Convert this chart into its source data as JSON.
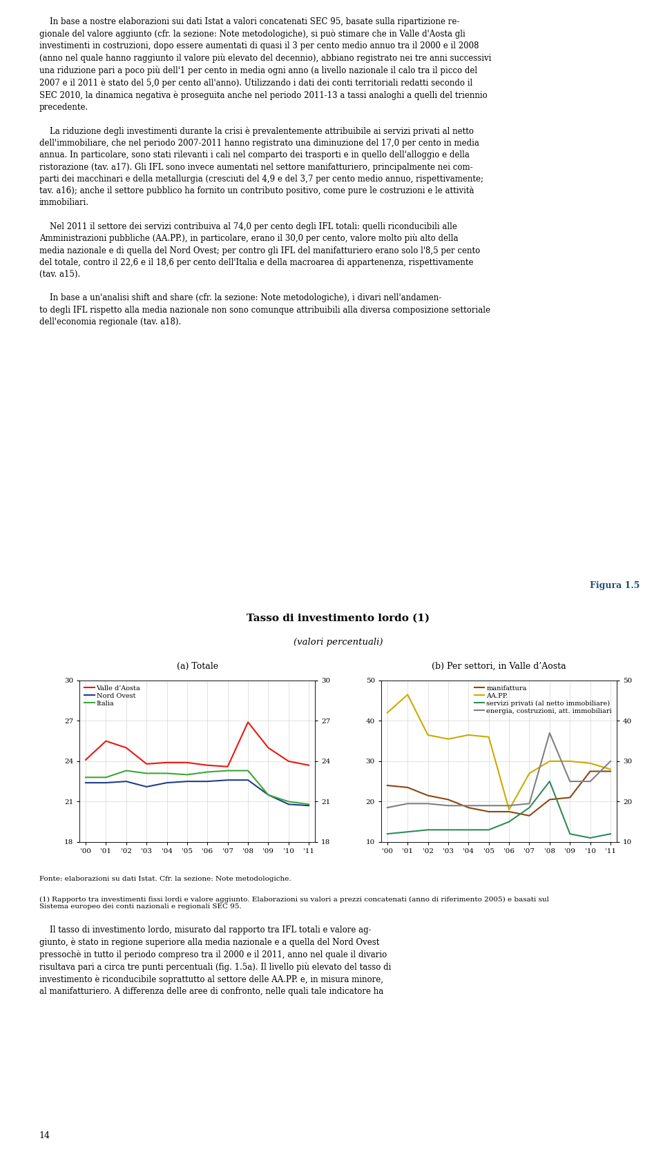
{
  "title_main": "Tasso di investimento lordo (1)",
  "title_sub": "(valori percentuali)",
  "figura_label": "Figura 1.5",
  "subtitle_a": "(a) Totale",
  "subtitle_b": "(b) Per settori, in Valle d’Aosta",
  "years": [
    "'00",
    "'01",
    "'02",
    "'03",
    "'04",
    "'05",
    "'06",
    "'07",
    "'08",
    "'09",
    "'10",
    "'11"
  ],
  "panel_a": {
    "valle_daosta": [
      24.1,
      25.5,
      25.0,
      23.8,
      23.9,
      23.9,
      23.7,
      23.6,
      26.9,
      25.0,
      24.0,
      23.7
    ],
    "nord_ovest": [
      22.4,
      22.4,
      22.5,
      22.1,
      22.4,
      22.5,
      22.5,
      22.6,
      22.6,
      21.5,
      20.8,
      20.7
    ],
    "italia": [
      22.8,
      22.8,
      23.3,
      23.1,
      23.1,
      23.0,
      23.2,
      23.3,
      23.3,
      21.5,
      21.0,
      20.8
    ],
    "ylim": [
      18,
      30
    ],
    "yticks": [
      18,
      21,
      24,
      27,
      30
    ],
    "colors": {
      "valle_daosta": "#e8180c",
      "nord_ovest": "#1f3d8c",
      "italia": "#3aa832"
    },
    "legend": [
      "Valle d’Aosta",
      "Nord Ovest",
      "Italia"
    ]
  },
  "panel_b": {
    "manifattura": [
      24.0,
      23.5,
      21.5,
      20.5,
      18.5,
      17.5,
      17.5,
      16.5,
      20.5,
      21.0,
      27.5,
      27.5
    ],
    "aapp": [
      42.0,
      46.5,
      36.5,
      35.5,
      36.5,
      36.0,
      18.0,
      27.0,
      30.0,
      30.0,
      29.5,
      28.0
    ],
    "servizi_priv": [
      12.0,
      12.5,
      13.0,
      13.0,
      13.0,
      13.0,
      15.0,
      18.5,
      25.0,
      12.0,
      11.0,
      12.0
    ],
    "energia": [
      18.5,
      19.5,
      19.5,
      19.0,
      19.0,
      19.0,
      19.0,
      19.5,
      37.0,
      25.0,
      25.0,
      30.0
    ],
    "ylim": [
      10,
      50
    ],
    "yticks": [
      10,
      20,
      30,
      40,
      50
    ],
    "colors": {
      "manifattura": "#8b4513",
      "aapp": "#ccaa00",
      "servizi_priv": "#2e8b57",
      "energia": "#808080"
    },
    "legend": [
      "manifattura",
      "AA.PP.",
      "servizi privati (al netto immobiliare)",
      "energia, costruzioni, att. immobiliari"
    ]
  },
  "background_color": "#dce6f1",
  "plot_bg_color": "#ffffff",
  "page_number": "14"
}
